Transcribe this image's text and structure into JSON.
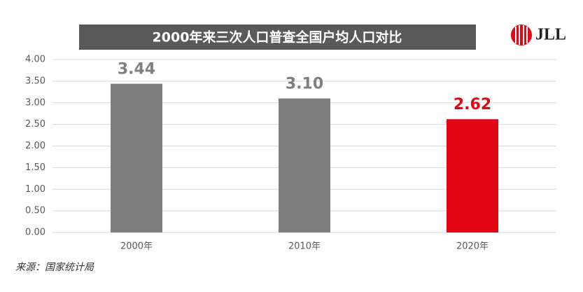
{
  "chart_data": {
    "type": "bar",
    "title": "2000年来三次人口普查全国户均人口对比",
    "categories": [
      "2000年",
      "2010年",
      "2020年"
    ],
    "values": [
      3.44,
      3.1,
      2.62
    ],
    "value_labels": [
      "3.44",
      "3.10",
      "2.62"
    ],
    "colors": [
      "#7f7f7f",
      "#7f7f7f",
      "#e30613"
    ],
    "ylim": [
      0,
      4
    ],
    "yticks": [
      {
        "value": 0,
        "label": "0.00"
      },
      {
        "value": 0.5,
        "label": "0.50"
      },
      {
        "value": 1,
        "label": "1.00"
      },
      {
        "value": 1.5,
        "label": "1.50"
      },
      {
        "value": 2,
        "label": "2.00"
      },
      {
        "value": 2.5,
        "label": "2.50"
      },
      {
        "value": 3,
        "label": "3.00"
      },
      {
        "value": 3.5,
        "label": "3.50"
      },
      {
        "value": 4,
        "label": "4.00"
      }
    ],
    "grid": true,
    "source": "来源：国家统计局",
    "logo": "JLL"
  }
}
